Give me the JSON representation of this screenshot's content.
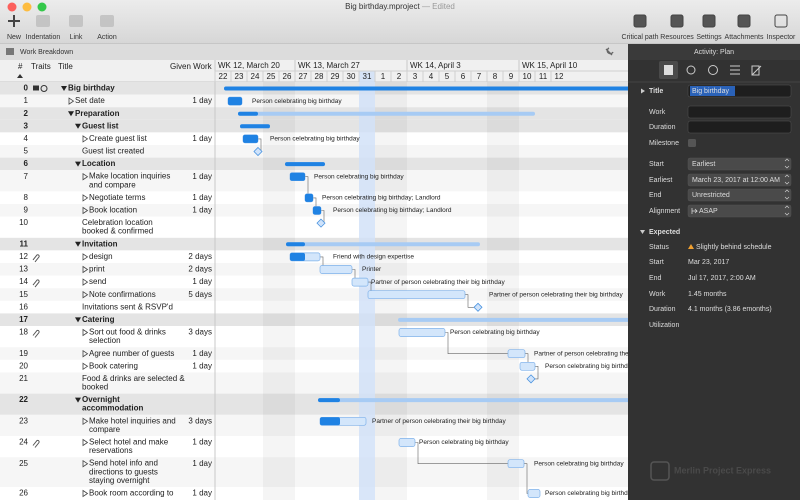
{
  "window": {
    "title": "Big birthday.mproject",
    "status": "— Edited"
  },
  "toolbar": {
    "left": [
      "New",
      "Indentation",
      "Link",
      "Action"
    ],
    "right": [
      "Critical path",
      "Resources",
      "Settings",
      "Attachments",
      "Inspector"
    ]
  },
  "panel_title": "Work Breakdown",
  "table": {
    "columns": [
      "#",
      "Traits",
      "Title",
      "Given Work"
    ],
    "rows": [
      {
        "number": 0,
        "title": "Big birthday"
      },
      {
        "number": 1,
        "title": "Set date",
        "work": "1 day",
        "resource": "Person celebrating big birthday"
      },
      {
        "number": 2,
        "title": "Preparation"
      },
      {
        "number": 3,
        "title": "Guest list"
      },
      {
        "number": 4,
        "title": "Create guest list",
        "work": "1 day",
        "resource": "Person celebrating big birthday"
      },
      {
        "number": 5,
        "title": "Guest list created"
      },
      {
        "number": 6,
        "title": "Location"
      },
      {
        "number": 7,
        "title": "Make location inquiries and compare",
        "work": "1 day",
        "resource": "Person celebrating big birthday"
      },
      {
        "number": 8,
        "title": "Negotiate terms",
        "work": "1 day",
        "resource": "Person celebrating big birthday; Landlord"
      },
      {
        "number": 9,
        "title": "Book location",
        "work": "1 day",
        "resource": "Person celebrating big birthday; Landlord"
      },
      {
        "number": 10,
        "title": "Celebration location booked & confirmed"
      },
      {
        "number": 11,
        "title": "Invitation"
      },
      {
        "number": 12,
        "title": "design",
        "work": "2 days",
        "resource": "Friend with design expertise"
      },
      {
        "number": 13,
        "title": "print",
        "work": "2 days",
        "resource": "Printer"
      },
      {
        "number": 14,
        "title": "send",
        "work": "1 day",
        "resource": "Partner of person celebrating their big birthday"
      },
      {
        "number": 15,
        "title": "Note confirmations",
        "work": "5 days",
        "resource": "Partner of person celebrating their big birthday"
      },
      {
        "number": 16,
        "title": "Invitations sent & RSVP'd"
      },
      {
        "number": 17,
        "title": "Catering"
      },
      {
        "number": 18,
        "title": "Sort out food & drinks selection",
        "work": "3 days",
        "resource": "Person celebrating big birthday"
      },
      {
        "number": 19,
        "title": "Agree number of guests",
        "work": "1 day",
        "resource": "Partner of person celebrating their big birthday"
      },
      {
        "number": 20,
        "title": "Book catering",
        "work": "1 day",
        "resource": "Person celebrating big birthday"
      },
      {
        "number": 21,
        "title": "Food & drinks are selected & booked"
      },
      {
        "number": 22,
        "title": "Overnight accommodation"
      },
      {
        "number": 23,
        "title": "Make hotel inquiries and compare",
        "work": "3 days",
        "resource": "Partner of person celebrating their big birthday"
      },
      {
        "number": 24,
        "title": "Select hotel and make reservations",
        "work": "1 day",
        "resource": "Person celebrating big birthday"
      },
      {
        "number": 25,
        "title": "Send hotel info and directions to guests staying overnight",
        "work": "1 day",
        "resource": "Person celebrating big birthday"
      },
      {
        "number": 26,
        "title": "Book room according to",
        "work": "1 day",
        "resource": "Person celebrating big birthday"
      }
    ]
  },
  "timeline": {
    "weeks": [
      "WK 12, March 20",
      "WK 13, March 27",
      "WK 14, April 3",
      "WK 15, April 10"
    ],
    "days": [
      22,
      23,
      24,
      25,
      26,
      27,
      28,
      29,
      30,
      31,
      1,
      2,
      3,
      4,
      5,
      6,
      7,
      8,
      9,
      10,
      11,
      12
    ]
  },
  "inspector": {
    "header": "Activity: Plan",
    "fields": [
      {
        "label": "Title",
        "value": "Big birthday"
      },
      {
        "label": "Work"
      },
      {
        "label": "Duration"
      },
      {
        "label": "Milestone"
      },
      {
        "label": "Start",
        "value": "Earliest"
      },
      {
        "label": "Earliest",
        "value": "March 23, 2017 at 12:00 AM"
      },
      {
        "label": "End",
        "value": "Unrestricted"
      },
      {
        "label": "Alignment",
        "value": "ASAP"
      }
    ],
    "expected_title": "Expected",
    "expected": [
      {
        "label": "Status",
        "value": "Slightly behind schedule"
      },
      {
        "label": "Start",
        "value": "Mar 23, 2017"
      },
      {
        "label": "End",
        "value": "Jul 17, 2017, 2:00 AM"
      },
      {
        "label": "Work",
        "value": "1.45 months"
      },
      {
        "label": "Duration",
        "value": "4.1 months (3.86 emonths)"
      },
      {
        "label": "Utilization"
      }
    ]
  },
  "watermark": "Merlin Project Express"
}
